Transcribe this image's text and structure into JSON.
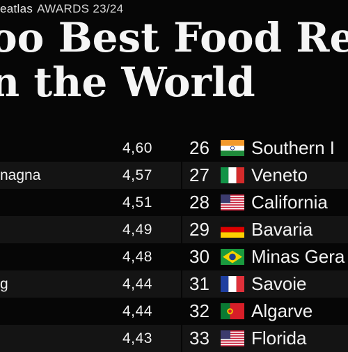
{
  "header": {
    "brand": "eatlas",
    "awards": "AWARDS 23/24",
    "title_line1": "oo Best Food Re",
    "title_line2": "n the World"
  },
  "rows": [
    {
      "left_label": "",
      "score": "4,60",
      "rank": "26",
      "flag": "india-flag",
      "region": "Southern I"
    },
    {
      "left_label": "nagna",
      "score": "4,57",
      "rank": "27",
      "flag": "italy-flag",
      "region": "Veneto"
    },
    {
      "left_label": "",
      "score": "4,51",
      "rank": "28",
      "flag": "usa-flag",
      "region": "California"
    },
    {
      "left_label": "",
      "score": "4,49",
      "rank": "29",
      "flag": "germany-flag",
      "region": "Bavaria"
    },
    {
      "left_label": "",
      "score": "4,48",
      "rank": "30",
      "flag": "brazil-flag",
      "region": "Minas Gera"
    },
    {
      "left_label": "g",
      "score": "4,44",
      "rank": "31",
      "flag": "france-flag",
      "region": "Savoie"
    },
    {
      "left_label": "",
      "score": "4,44",
      "rank": "32",
      "flag": "portugal-flag",
      "region": "Algarve"
    },
    {
      "left_label": "",
      "score": "4,43",
      "rank": "33",
      "flag": "usa-flag",
      "region": "Florida"
    }
  ],
  "colors": {
    "background": "#060606",
    "stripe": "#141414",
    "text": "#f2f2f2"
  }
}
